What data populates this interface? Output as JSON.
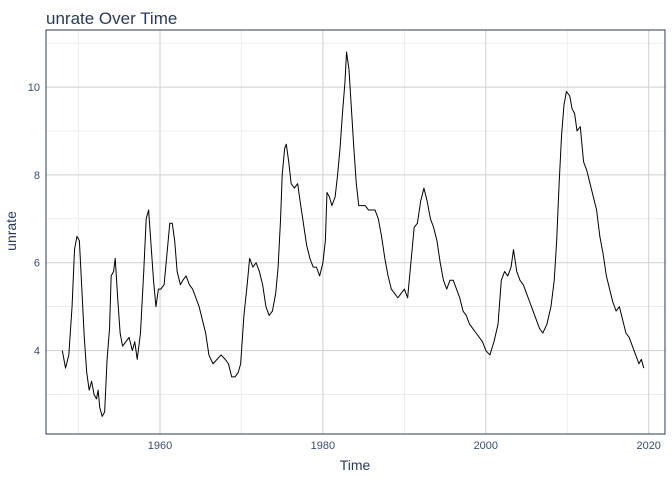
{
  "chart_data": {
    "type": "line",
    "title": "unrate Over Time",
    "xlabel": "Time",
    "ylabel": "unrate",
    "xlim": [
      1946,
      2022
    ],
    "ylim": [
      2.1,
      11.3
    ],
    "x_ticks": [
      1960,
      1980,
      2000,
      2020
    ],
    "y_ticks": [
      4,
      6,
      8,
      10
    ],
    "grid": true,
    "legend": "none",
    "series": [
      {
        "color": "#000000",
        "points": [
          [
            1948.0,
            4.0
          ],
          [
            1948.4,
            3.6
          ],
          [
            1948.8,
            3.9
          ],
          [
            1949.2,
            5.0
          ],
          [
            1949.5,
            6.3
          ],
          [
            1949.8,
            6.6
          ],
          [
            1950.1,
            6.5
          ],
          [
            1950.4,
            5.4
          ],
          [
            1950.7,
            4.3
          ],
          [
            1951.0,
            3.5
          ],
          [
            1951.3,
            3.1
          ],
          [
            1951.6,
            3.3
          ],
          [
            1951.9,
            3.0
          ],
          [
            1952.2,
            2.9
          ],
          [
            1952.4,
            3.1
          ],
          [
            1952.6,
            2.7
          ],
          [
            1952.9,
            2.5
          ],
          [
            1953.2,
            2.6
          ],
          [
            1953.5,
            3.8
          ],
          [
            1953.8,
            4.5
          ],
          [
            1954.0,
            5.7
          ],
          [
            1954.3,
            5.8
          ],
          [
            1954.5,
            6.1
          ],
          [
            1954.8,
            5.2
          ],
          [
            1955.1,
            4.4
          ],
          [
            1955.4,
            4.1
          ],
          [
            1955.8,
            4.2
          ],
          [
            1956.2,
            4.3
          ],
          [
            1956.6,
            4.0
          ],
          [
            1956.9,
            4.2
          ],
          [
            1957.2,
            3.8
          ],
          [
            1957.6,
            4.4
          ],
          [
            1958.0,
            5.8
          ],
          [
            1958.3,
            7.0
          ],
          [
            1958.6,
            7.2
          ],
          [
            1958.9,
            6.4
          ],
          [
            1959.2,
            5.6
          ],
          [
            1959.5,
            5.0
          ],
          [
            1959.8,
            5.4
          ],
          [
            1960.1,
            5.4
          ],
          [
            1960.5,
            5.5
          ],
          [
            1960.9,
            6.3
          ],
          [
            1961.2,
            6.9
          ],
          [
            1961.5,
            6.9
          ],
          [
            1961.8,
            6.5
          ],
          [
            1962.1,
            5.8
          ],
          [
            1962.5,
            5.5
          ],
          [
            1962.8,
            5.6
          ],
          [
            1963.2,
            5.7
          ],
          [
            1963.6,
            5.5
          ],
          [
            1964.0,
            5.4
          ],
          [
            1964.4,
            5.2
          ],
          [
            1964.8,
            5.0
          ],
          [
            1965.2,
            4.7
          ],
          [
            1965.6,
            4.4
          ],
          [
            1966.0,
            3.9
          ],
          [
            1966.5,
            3.7
          ],
          [
            1967.0,
            3.8
          ],
          [
            1967.5,
            3.9
          ],
          [
            1968.0,
            3.8
          ],
          [
            1968.4,
            3.7
          ],
          [
            1968.8,
            3.4
          ],
          [
            1969.2,
            3.4
          ],
          [
            1969.6,
            3.5
          ],
          [
            1969.9,
            3.7
          ],
          [
            1970.3,
            4.8
          ],
          [
            1970.7,
            5.5
          ],
          [
            1971.0,
            6.1
          ],
          [
            1971.4,
            5.9
          ],
          [
            1971.8,
            6.0
          ],
          [
            1972.2,
            5.8
          ],
          [
            1972.6,
            5.5
          ],
          [
            1973.0,
            5.0
          ],
          [
            1973.4,
            4.8
          ],
          [
            1973.8,
            4.9
          ],
          [
            1974.2,
            5.3
          ],
          [
            1974.5,
            5.9
          ],
          [
            1974.8,
            7.0
          ],
          [
            1975.0,
            8.0
          ],
          [
            1975.3,
            8.6
          ],
          [
            1975.5,
            8.7
          ],
          [
            1975.8,
            8.3
          ],
          [
            1976.1,
            7.8
          ],
          [
            1976.5,
            7.7
          ],
          [
            1976.9,
            7.8
          ],
          [
            1977.2,
            7.4
          ],
          [
            1977.6,
            6.9
          ],
          [
            1978.0,
            6.4
          ],
          [
            1978.4,
            6.1
          ],
          [
            1978.8,
            5.9
          ],
          [
            1979.2,
            5.9
          ],
          [
            1979.6,
            5.7
          ],
          [
            1980.0,
            6.0
          ],
          [
            1980.3,
            6.5
          ],
          [
            1980.5,
            7.6
          ],
          [
            1980.8,
            7.5
          ],
          [
            1981.1,
            7.3
          ],
          [
            1981.5,
            7.5
          ],
          [
            1981.8,
            8.0
          ],
          [
            1982.1,
            8.6
          ],
          [
            1982.4,
            9.4
          ],
          [
            1982.7,
            10.1
          ],
          [
            1982.9,
            10.8
          ],
          [
            1983.2,
            10.4
          ],
          [
            1983.5,
            9.5
          ],
          [
            1983.8,
            8.6
          ],
          [
            1984.1,
            7.8
          ],
          [
            1984.4,
            7.3
          ],
          [
            1984.8,
            7.3
          ],
          [
            1985.2,
            7.3
          ],
          [
            1985.6,
            7.2
          ],
          [
            1986.0,
            7.2
          ],
          [
            1986.4,
            7.2
          ],
          [
            1986.8,
            7.0
          ],
          [
            1987.2,
            6.6
          ],
          [
            1987.6,
            6.1
          ],
          [
            1988.0,
            5.7
          ],
          [
            1988.4,
            5.4
          ],
          [
            1988.8,
            5.3
          ],
          [
            1989.2,
            5.2
          ],
          [
            1989.6,
            5.3
          ],
          [
            1990.0,
            5.4
          ],
          [
            1990.4,
            5.2
          ],
          [
            1990.8,
            6.0
          ],
          [
            1991.2,
            6.8
          ],
          [
            1991.6,
            6.9
          ],
          [
            1992.0,
            7.4
          ],
          [
            1992.4,
            7.7
          ],
          [
            1992.8,
            7.4
          ],
          [
            1993.2,
            7.0
          ],
          [
            1993.6,
            6.8
          ],
          [
            1994.0,
            6.5
          ],
          [
            1994.4,
            6.0
          ],
          [
            1994.8,
            5.6
          ],
          [
            1995.2,
            5.4
          ],
          [
            1995.6,
            5.6
          ],
          [
            1996.0,
            5.6
          ],
          [
            1996.4,
            5.4
          ],
          [
            1996.8,
            5.2
          ],
          [
            1997.2,
            4.9
          ],
          [
            1997.6,
            4.8
          ],
          [
            1998.0,
            4.6
          ],
          [
            1998.4,
            4.5
          ],
          [
            1998.8,
            4.4
          ],
          [
            1999.2,
            4.3
          ],
          [
            1999.6,
            4.2
          ],
          [
            2000.0,
            4.0
          ],
          [
            2000.5,
            3.9
          ],
          [
            2001.0,
            4.2
          ],
          [
            2001.5,
            4.6
          ],
          [
            2001.9,
            5.6
          ],
          [
            2002.3,
            5.8
          ],
          [
            2002.7,
            5.7
          ],
          [
            2003.1,
            5.9
          ],
          [
            2003.4,
            6.3
          ],
          [
            2003.8,
            5.8
          ],
          [
            2004.2,
            5.6
          ],
          [
            2004.6,
            5.5
          ],
          [
            2005.0,
            5.3
          ],
          [
            2005.4,
            5.1
          ],
          [
            2005.8,
            4.9
          ],
          [
            2006.2,
            4.7
          ],
          [
            2006.6,
            4.5
          ],
          [
            2007.0,
            4.4
          ],
          [
            2007.5,
            4.6
          ],
          [
            2008.0,
            5.0
          ],
          [
            2008.4,
            5.6
          ],
          [
            2008.7,
            6.5
          ],
          [
            2009.0,
            7.8
          ],
          [
            2009.3,
            8.9
          ],
          [
            2009.6,
            9.6
          ],
          [
            2009.9,
            9.9
          ],
          [
            2010.3,
            9.8
          ],
          [
            2010.6,
            9.5
          ],
          [
            2010.9,
            9.4
          ],
          [
            2011.2,
            9.0
          ],
          [
            2011.6,
            9.1
          ],
          [
            2012.0,
            8.3
          ],
          [
            2012.4,
            8.1
          ],
          [
            2012.8,
            7.8
          ],
          [
            2013.2,
            7.5
          ],
          [
            2013.6,
            7.2
          ],
          [
            2014.0,
            6.6
          ],
          [
            2014.4,
            6.2
          ],
          [
            2014.8,
            5.7
          ],
          [
            2015.2,
            5.4
          ],
          [
            2015.6,
            5.1
          ],
          [
            2016.0,
            4.9
          ],
          [
            2016.4,
            5.0
          ],
          [
            2016.8,
            4.7
          ],
          [
            2017.2,
            4.4
          ],
          [
            2017.6,
            4.3
          ],
          [
            2018.0,
            4.1
          ],
          [
            2018.4,
            3.9
          ],
          [
            2018.8,
            3.7
          ],
          [
            2019.1,
            3.8
          ],
          [
            2019.4,
            3.6
          ]
        ]
      }
    ]
  }
}
